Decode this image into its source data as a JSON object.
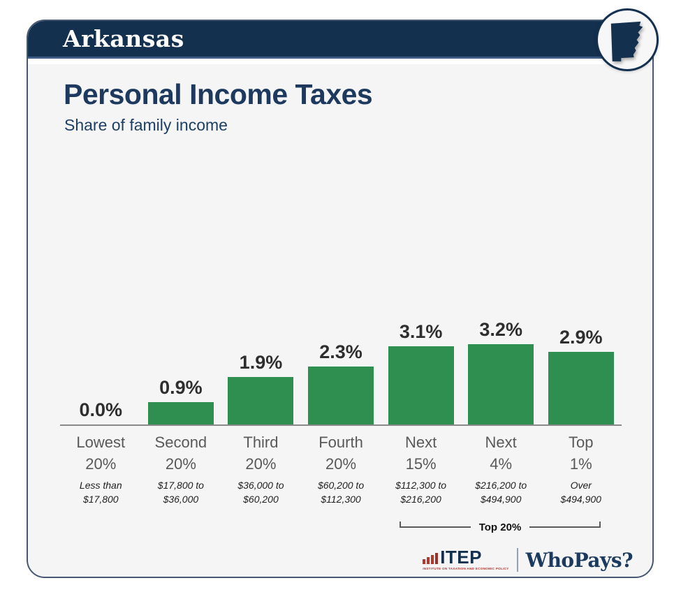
{
  "header": {
    "state": "Arkansas"
  },
  "badge": {
    "icon": "arkansas-state-icon"
  },
  "title": "Personal Income Taxes",
  "subtitle": "Share of family income",
  "chart_data": {
    "type": "bar",
    "title": "Personal Income Taxes",
    "subtitle": "Share of family income",
    "categories": [
      "Lowest 20%",
      "Second 20%",
      "Third 20%",
      "Fourth 20%",
      "Next 15%",
      "Next 4%",
      "Top 1%"
    ],
    "category_lines": [
      [
        "Lowest",
        "20%"
      ],
      [
        "Second",
        "20%"
      ],
      [
        "Third",
        "20%"
      ],
      [
        "Fourth",
        "20%"
      ],
      [
        "Next",
        "15%"
      ],
      [
        "Next",
        "4%"
      ],
      [
        "Top",
        "1%"
      ]
    ],
    "income_ranges": [
      [
        "Less than",
        "$17,800"
      ],
      [
        "$17,800 to",
        "$36,000"
      ],
      [
        "$36,000 to",
        "$60,200"
      ],
      [
        "$60,200 to",
        "$112,300"
      ],
      [
        "$112,300 to",
        "$216,200"
      ],
      [
        "$216,200 to",
        "$494,900"
      ],
      [
        "Over",
        "$494,900"
      ]
    ],
    "values": [
      0.0,
      0.9,
      1.9,
      2.3,
      3.1,
      3.2,
      2.9
    ],
    "value_labels": [
      "0.0%",
      "0.9%",
      "1.9%",
      "2.3%",
      "3.1%",
      "3.2%",
      "2.9%"
    ],
    "ylabel": "Share of family income (%)",
    "ylim": [
      0,
      3.5
    ],
    "grid": false,
    "legend": false,
    "bar_color": "#2e8f50",
    "annotation": {
      "label": "Top 20%",
      "spans": [
        "Next 15%",
        "Next 4%",
        "Top 1%"
      ]
    }
  },
  "footer": {
    "itep_name": "ITEP",
    "itep_tagline": "INSTITUTE ON TAXATION AND ECONOMIC POLICY",
    "whopays": "WhoPays?"
  },
  "colors": {
    "navy": "#14304f",
    "card_background": "#f5f5f6",
    "bar_green": "#2e8f50",
    "itep_red": "#b5382f"
  }
}
